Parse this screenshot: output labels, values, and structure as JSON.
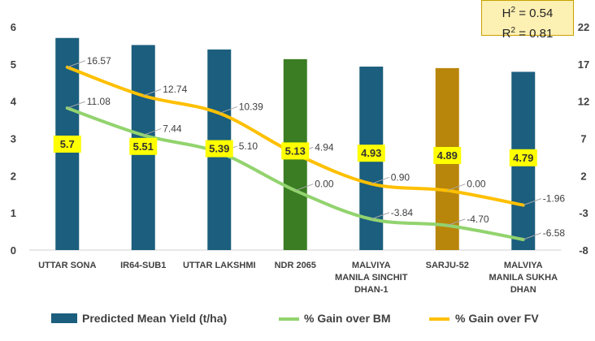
{
  "chart_data": {
    "type": "bar",
    "categories": [
      [
        "UTTAR SONA"
      ],
      [
        "IR64-SUB1"
      ],
      [
        "UTTAR LAKSHMI"
      ],
      [
        "NDR 2065"
      ],
      [
        "MALVIYA",
        "MANILA SINCHIT",
        "DHAN-1"
      ],
      [
        "SARJU-52"
      ],
      [
        "MALVIYA",
        "MANILA SUKHA",
        "DHAN"
      ]
    ],
    "bar_series": {
      "name": "Predicted Mean Yield (t/ha)",
      "values": [
        5.7,
        5.51,
        5.39,
        5.13,
        4.93,
        4.89,
        4.79
      ],
      "value_labels": [
        "5.7",
        "5.51",
        "5.39",
        "5.13",
        "4.93",
        "4.89",
        "4.79"
      ],
      "colors": [
        "#1b5e7e",
        "#1b5e7e",
        "#1b5e7e",
        "#3a7d23",
        "#1b5e7e",
        "#b8860b",
        "#1b5e7e"
      ],
      "legend_color": "#1b5e7e"
    },
    "line_series": [
      {
        "name": "% Gain over BM",
        "values": [
          11.08,
          7.44,
          5.1,
          0.0,
          -3.84,
          -4.7,
          -6.58
        ],
        "value_labels": [
          "11.08",
          "7.44",
          "5.10",
          "0.00",
          "-3.84",
          "-4.70",
          "-6.58"
        ],
        "color": "#92d36e"
      },
      {
        "name": "% Gain over FV",
        "values": [
          16.57,
          12.74,
          10.39,
          4.94,
          0.9,
          0.0,
          -1.96
        ],
        "value_labels": [
          "16.57",
          "12.74",
          "10.39",
          "4.94",
          "0.90",
          "0.00",
          "-1.96"
        ],
        "color": "#ffc000"
      }
    ],
    "y_left": {
      "ticks": [
        "0",
        "1",
        "2",
        "3",
        "4",
        "5",
        "6"
      ],
      "range": [
        0,
        6
      ]
    },
    "y_right": {
      "ticks": [
        "-8",
        "-3",
        "2",
        "7",
        "12",
        "17",
        "22"
      ],
      "range": [
        -8,
        22
      ]
    },
    "grid": false,
    "legend": "bottom",
    "stats_box": {
      "h2_label": "H",
      "h2_value": " = 0.54",
      "r2_label": "R",
      "r2_value": " = 0.81",
      "superscript": "2"
    }
  }
}
